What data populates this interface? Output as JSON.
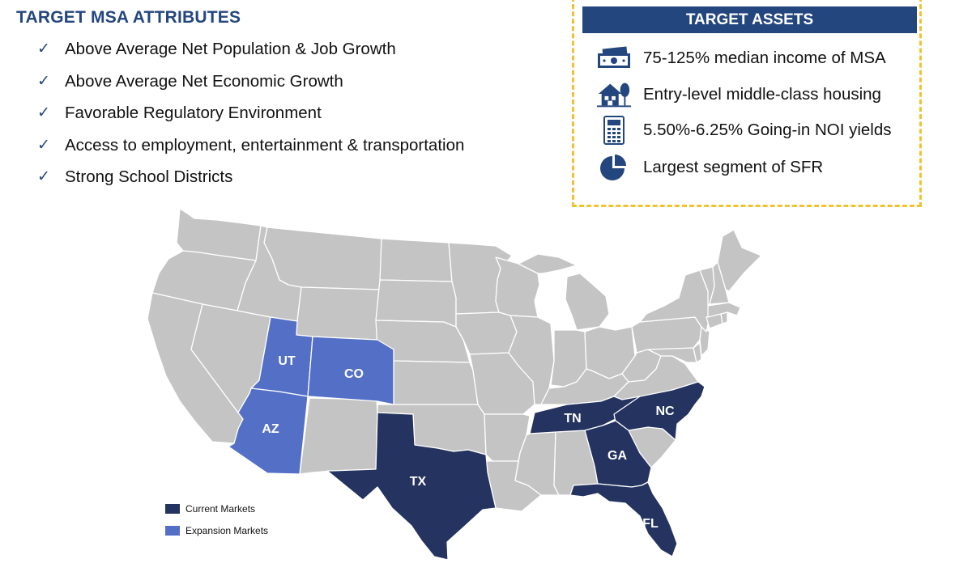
{
  "attributes": {
    "title": "TARGET MSA ATTRIBUTES",
    "check_glyph": "✓",
    "items": [
      "Above Average Net Population & Job Growth",
      "Above Average Net Economic Growth",
      "Favorable Regulatory Environment",
      "Access to employment, entertainment & transportation",
      "Strong School Districts"
    ]
  },
  "assets": {
    "title": "TARGET ASSETS",
    "items": [
      {
        "icon": "money-icon",
        "text": "75-125% median income of MSA"
      },
      {
        "icon": "house-icon",
        "text": "Entry-level middle-class housing"
      },
      {
        "icon": "calculator-icon",
        "text": "5.50%-6.25% Going-in NOI yields"
      },
      {
        "icon": "pie-chart-icon",
        "text": "Largest segment of SFR"
      }
    ]
  },
  "map": {
    "labels": {
      "UT": "UT",
      "CO": "CO",
      "AZ": "AZ",
      "TX": "TX",
      "TN": "TN",
      "NC": "NC",
      "GA": "GA",
      "FL": "FL"
    },
    "current_markets": [
      "TX",
      "TN",
      "NC",
      "GA",
      "FL"
    ],
    "expansion_markets": [
      "UT",
      "CO",
      "AZ"
    ]
  },
  "legend": {
    "current": "Current Markets",
    "expansion": "Expansion Markets"
  },
  "colors": {
    "current": "#24335f",
    "expansion": "#5470c6",
    "base": "#c4c4c4",
    "border": "#ffffff",
    "accent": "#24467f",
    "dashed_border": "#f2c22e"
  }
}
